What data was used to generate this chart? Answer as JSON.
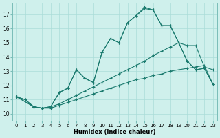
{
  "title": "",
  "xlabel": "Humidex (Indice chaleur)",
  "bg_color": "#cff0ec",
  "line_color": "#1a7a6e",
  "grid_color": "#aaddd8",
  "xlim": [
    -0.5,
    23.5
  ],
  "ylim": [
    9.5,
    17.8
  ],
  "xticks": [
    0,
    1,
    2,
    3,
    4,
    5,
    6,
    7,
    8,
    9,
    10,
    11,
    12,
    13,
    14,
    15,
    16,
    17,
    18,
    19,
    20,
    21,
    22,
    23
  ],
  "yticks": [
    10,
    11,
    12,
    13,
    14,
    15,
    16,
    17
  ],
  "lines": [
    {
      "x": [
        0,
        1,
        2,
        3,
        4,
        5,
        6,
        7,
        8,
        9,
        10,
        11,
        12,
        13,
        14,
        15,
        16,
        17,
        18,
        19,
        20,
        21,
        22,
        23
      ],
      "y": [
        11.2,
        11.0,
        10.5,
        10.4,
        10.4,
        10.6,
        10.8,
        11.0,
        11.2,
        11.4,
        11.6,
        11.8,
        12.0,
        12.2,
        12.4,
        12.5,
        12.7,
        12.8,
        13.0,
        13.1,
        13.2,
        13.3,
        13.4,
        12.1
      ]
    },
    {
      "x": [
        0,
        1,
        2,
        3,
        4,
        5,
        6,
        7,
        8,
        9,
        10,
        11,
        12,
        13,
        14,
        15,
        16,
        17,
        18,
        19,
        20,
        21,
        22,
        23
      ],
      "y": [
        11.2,
        11.0,
        10.5,
        10.4,
        10.5,
        10.7,
        11.0,
        11.3,
        11.6,
        11.9,
        12.2,
        12.5,
        12.8,
        13.1,
        13.4,
        13.7,
        14.1,
        14.4,
        14.7,
        15.0,
        13.7,
        13.1,
        13.2,
        12.1
      ]
    },
    {
      "x": [
        0,
        2,
        3,
        4,
        5,
        6,
        7,
        8,
        9,
        10,
        11,
        12,
        13,
        14,
        15,
        16,
        17,
        18,
        19,
        20,
        21,
        22,
        23
      ],
      "y": [
        11.2,
        10.5,
        10.4,
        10.5,
        11.5,
        11.8,
        13.1,
        12.5,
        12.2,
        14.3,
        15.3,
        15.0,
        16.4,
        16.9,
        17.4,
        17.3,
        16.2,
        16.2,
        15.0,
        13.7,
        13.1,
        13.2,
        12.1
      ]
    },
    {
      "x": [
        0,
        2,
        3,
        4,
        5,
        6,
        7,
        8,
        9,
        10,
        11,
        12,
        13,
        14,
        15,
        16,
        17,
        18,
        19,
        20,
        21,
        22,
        23
      ],
      "y": [
        11.2,
        10.5,
        10.4,
        10.5,
        11.5,
        11.8,
        13.1,
        12.5,
        12.2,
        14.3,
        15.3,
        15.0,
        16.4,
        16.9,
        17.5,
        17.3,
        16.2,
        16.2,
        15.0,
        14.8,
        14.8,
        13.3,
        13.1
      ]
    }
  ]
}
